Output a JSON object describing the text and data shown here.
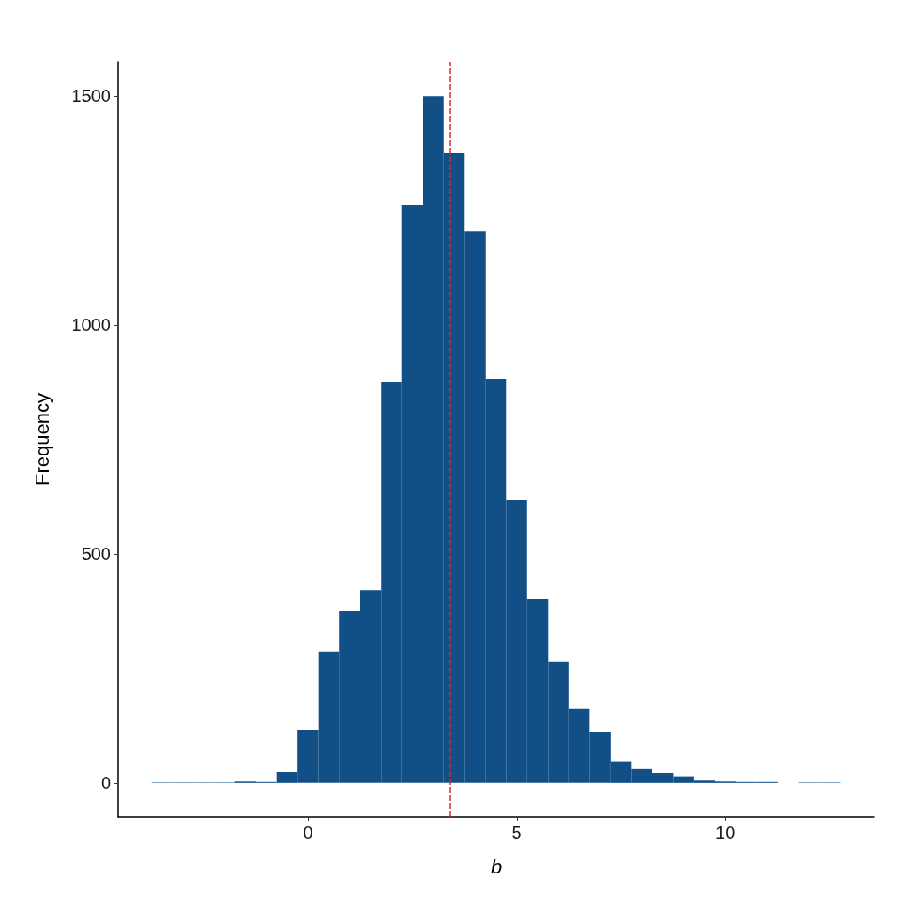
{
  "chart_data": {
    "type": "histogram",
    "xlabel": "b",
    "ylabel": "Frequency",
    "color": "#134f87",
    "bins": [
      -3.75,
      -3.25,
      -2.75,
      -2.25,
      -1.75,
      -1.25,
      -0.75,
      -0.25,
      0.25,
      0.75,
      1.25,
      1.75,
      2.25,
      2.75,
      3.25,
      3.75,
      4.25,
      4.75,
      5.25,
      5.75,
      6.25,
      6.75,
      7.25,
      7.75,
      8.25,
      8.75,
      9.25,
      9.75,
      10.25,
      10.75,
      11.25,
      11.75,
      12.25,
      12.75
    ],
    "values": [
      1,
      1,
      1,
      1,
      3,
      2,
      23,
      116,
      287,
      376,
      420,
      876,
      1262,
      1500,
      1376,
      1205,
      882,
      618,
      401,
      264,
      161,
      110,
      47,
      31,
      21,
      14,
      5,
      3,
      2,
      2,
      0,
      1,
      1
    ],
    "xlim": [
      -4.55,
      13.57
    ],
    "ylim": [
      -74,
      1574
    ],
    "xticks": [
      0,
      5,
      10
    ],
    "yticks": [
      0,
      500,
      1000,
      1500
    ],
    "ref_lines": [
      {
        "axis": "x",
        "value": 3.4,
        "color": "#d62728",
        "line_style": "dashed"
      }
    ],
    "grid": false
  }
}
